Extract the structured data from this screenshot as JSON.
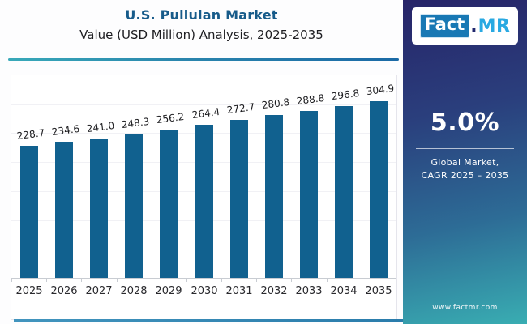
{
  "header": {
    "title": "U.S. Pullulan Market",
    "subtitle": "Value (USD Million) Analysis, 2025-2035"
  },
  "brand": {
    "logo_fact": "Fact",
    "logo_dot": ".",
    "logo_mr": "MR",
    "website": "www.factmr.com"
  },
  "sidebar": {
    "cagr_value": "5.0%",
    "cagr_label_line1": "Global Market,",
    "cagr_label_line2": "CAGR 2025 – 2035"
  },
  "chart_data": {
    "type": "bar",
    "title": "U.S. Pullulan Market Value (USD Million) Analysis, 2025-2035",
    "categories": [
      "2025",
      "2026",
      "2027",
      "2028",
      "2029",
      "2030",
      "2031",
      "2032",
      "2033",
      "2034",
      "2035"
    ],
    "values": [
      228.7,
      234.6,
      241.0,
      248.3,
      256.2,
      264.4,
      272.7,
      280.8,
      288.8,
      296.8,
      304.9
    ],
    "xlabel": "",
    "ylabel": "Value (USD Million)",
    "ylim": [
      0,
      350
    ],
    "gridline_step": 50,
    "grid": "horizontal",
    "legend": "none",
    "data_labels": true,
    "bar_color": "#11618f"
  },
  "colors": {
    "title": "#175b8a",
    "bar": "#11618f",
    "sidebar_gradient_top": "#272468",
    "sidebar_gradient_bottom": "#39adb2",
    "rule_gradient_left": "#38a9b9",
    "rule_gradient_right": "#1b6aa6",
    "logo_box": "#1878b4",
    "logo_mr_text": "#29a9e2"
  }
}
